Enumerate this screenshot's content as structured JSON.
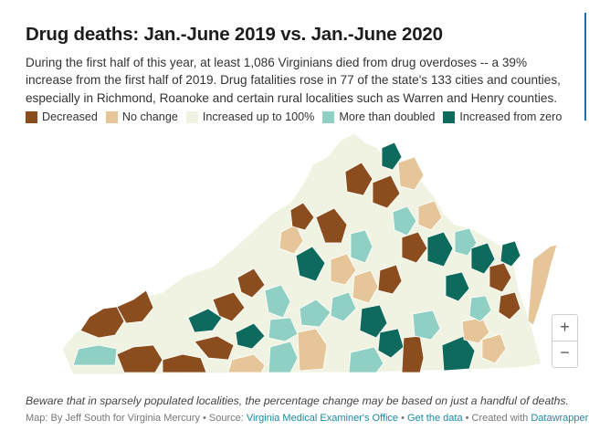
{
  "title": "Drug deaths: Jan.-June 2019 vs. Jan.-June 2020",
  "subtitle": "During the first half of this year, at least 1,086 Virginians died from drug overdoses -- a 39% increase from the first half of 2019. Drug fatalities rose in 77 of the state's 133 cities and counties, especially in Richmond, Roanoke and certain rural localities such as Warren and Henry counties.",
  "legend": [
    {
      "label": "Decreased",
      "color": "#8b4c1e"
    },
    {
      "label": "No change",
      "color": "#e6c698"
    },
    {
      "label": "Increased up to 100%",
      "color": "#f1f3e2"
    },
    {
      "label": "More than doubled",
      "color": "#8fcfc4"
    },
    {
      "label": "Increased from zero",
      "color": "#0d6a5c"
    }
  ],
  "map": {
    "region": "Virginia cities and counties",
    "category_colors": {
      "decreased": "#8b4c1e",
      "no_change": "#e6c698",
      "increased": "#f1f3e2",
      "doubled": "#8fcfc4",
      "from_zero": "#0d6a5c"
    },
    "border_color": "#ffffff"
  },
  "zoom": {
    "in_label": "+",
    "out_label": "−"
  },
  "note": "Beware that in sparsely populated localities, the percentage change may be based on just a handful of deaths.",
  "footer": {
    "prefix": "Map: By Jeff South for Virginia Mercury • Source: ",
    "source_link": "Virginia Medical Examiner's Office",
    "sep1": " • ",
    "data_link": "Get the data",
    "sep2": " • Created with ",
    "tool_link": "Datawrapper"
  }
}
